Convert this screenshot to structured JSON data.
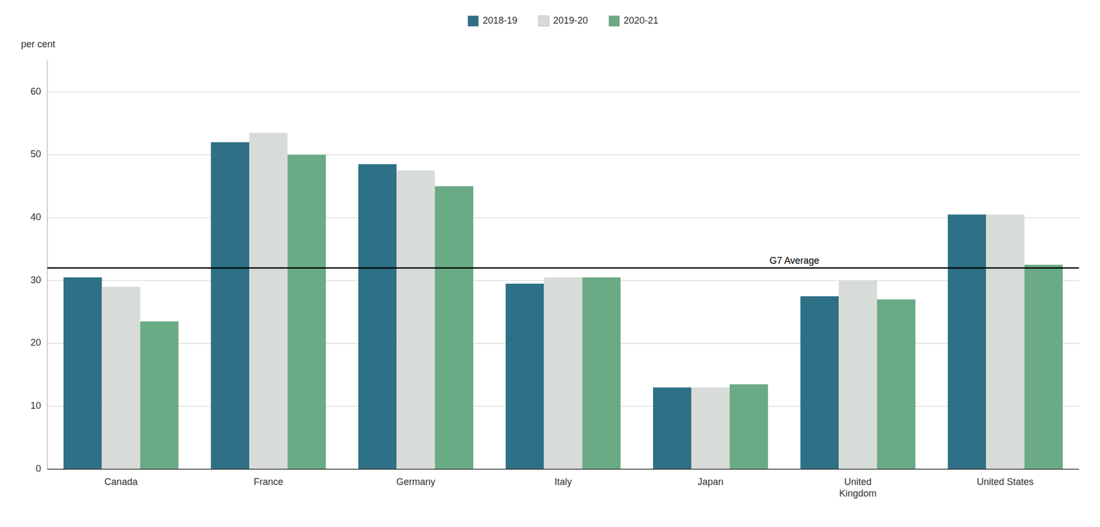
{
  "chart_data": {
    "type": "bar",
    "ylabel": "per cent",
    "categories": [
      "Canada",
      "France",
      "Germany",
      "Italy",
      "Japan",
      "United\nKingdom",
      "United States"
    ],
    "series": [
      {
        "name": "2018-19",
        "color": "#2e7085",
        "values": [
          30.5,
          52.0,
          48.5,
          29.5,
          13.0,
          27.5,
          40.5
        ]
      },
      {
        "name": "2019-20",
        "color": "#d8dcd8",
        "values": [
          29.0,
          53.5,
          47.5,
          30.5,
          13.0,
          30.0,
          40.5
        ]
      },
      {
        "name": "2020-21",
        "color": "#6aaa85",
        "values": [
          23.5,
          50.0,
          45.0,
          30.5,
          13.5,
          27.0,
          32.5
        ]
      }
    ],
    "reference_line": {
      "value": 32.0,
      "label": "G7 Average"
    },
    "ylim": [
      0,
      65
    ],
    "yticks": [
      0,
      10,
      20,
      30,
      40,
      50,
      60
    ],
    "grid": true,
    "legend": "top"
  }
}
